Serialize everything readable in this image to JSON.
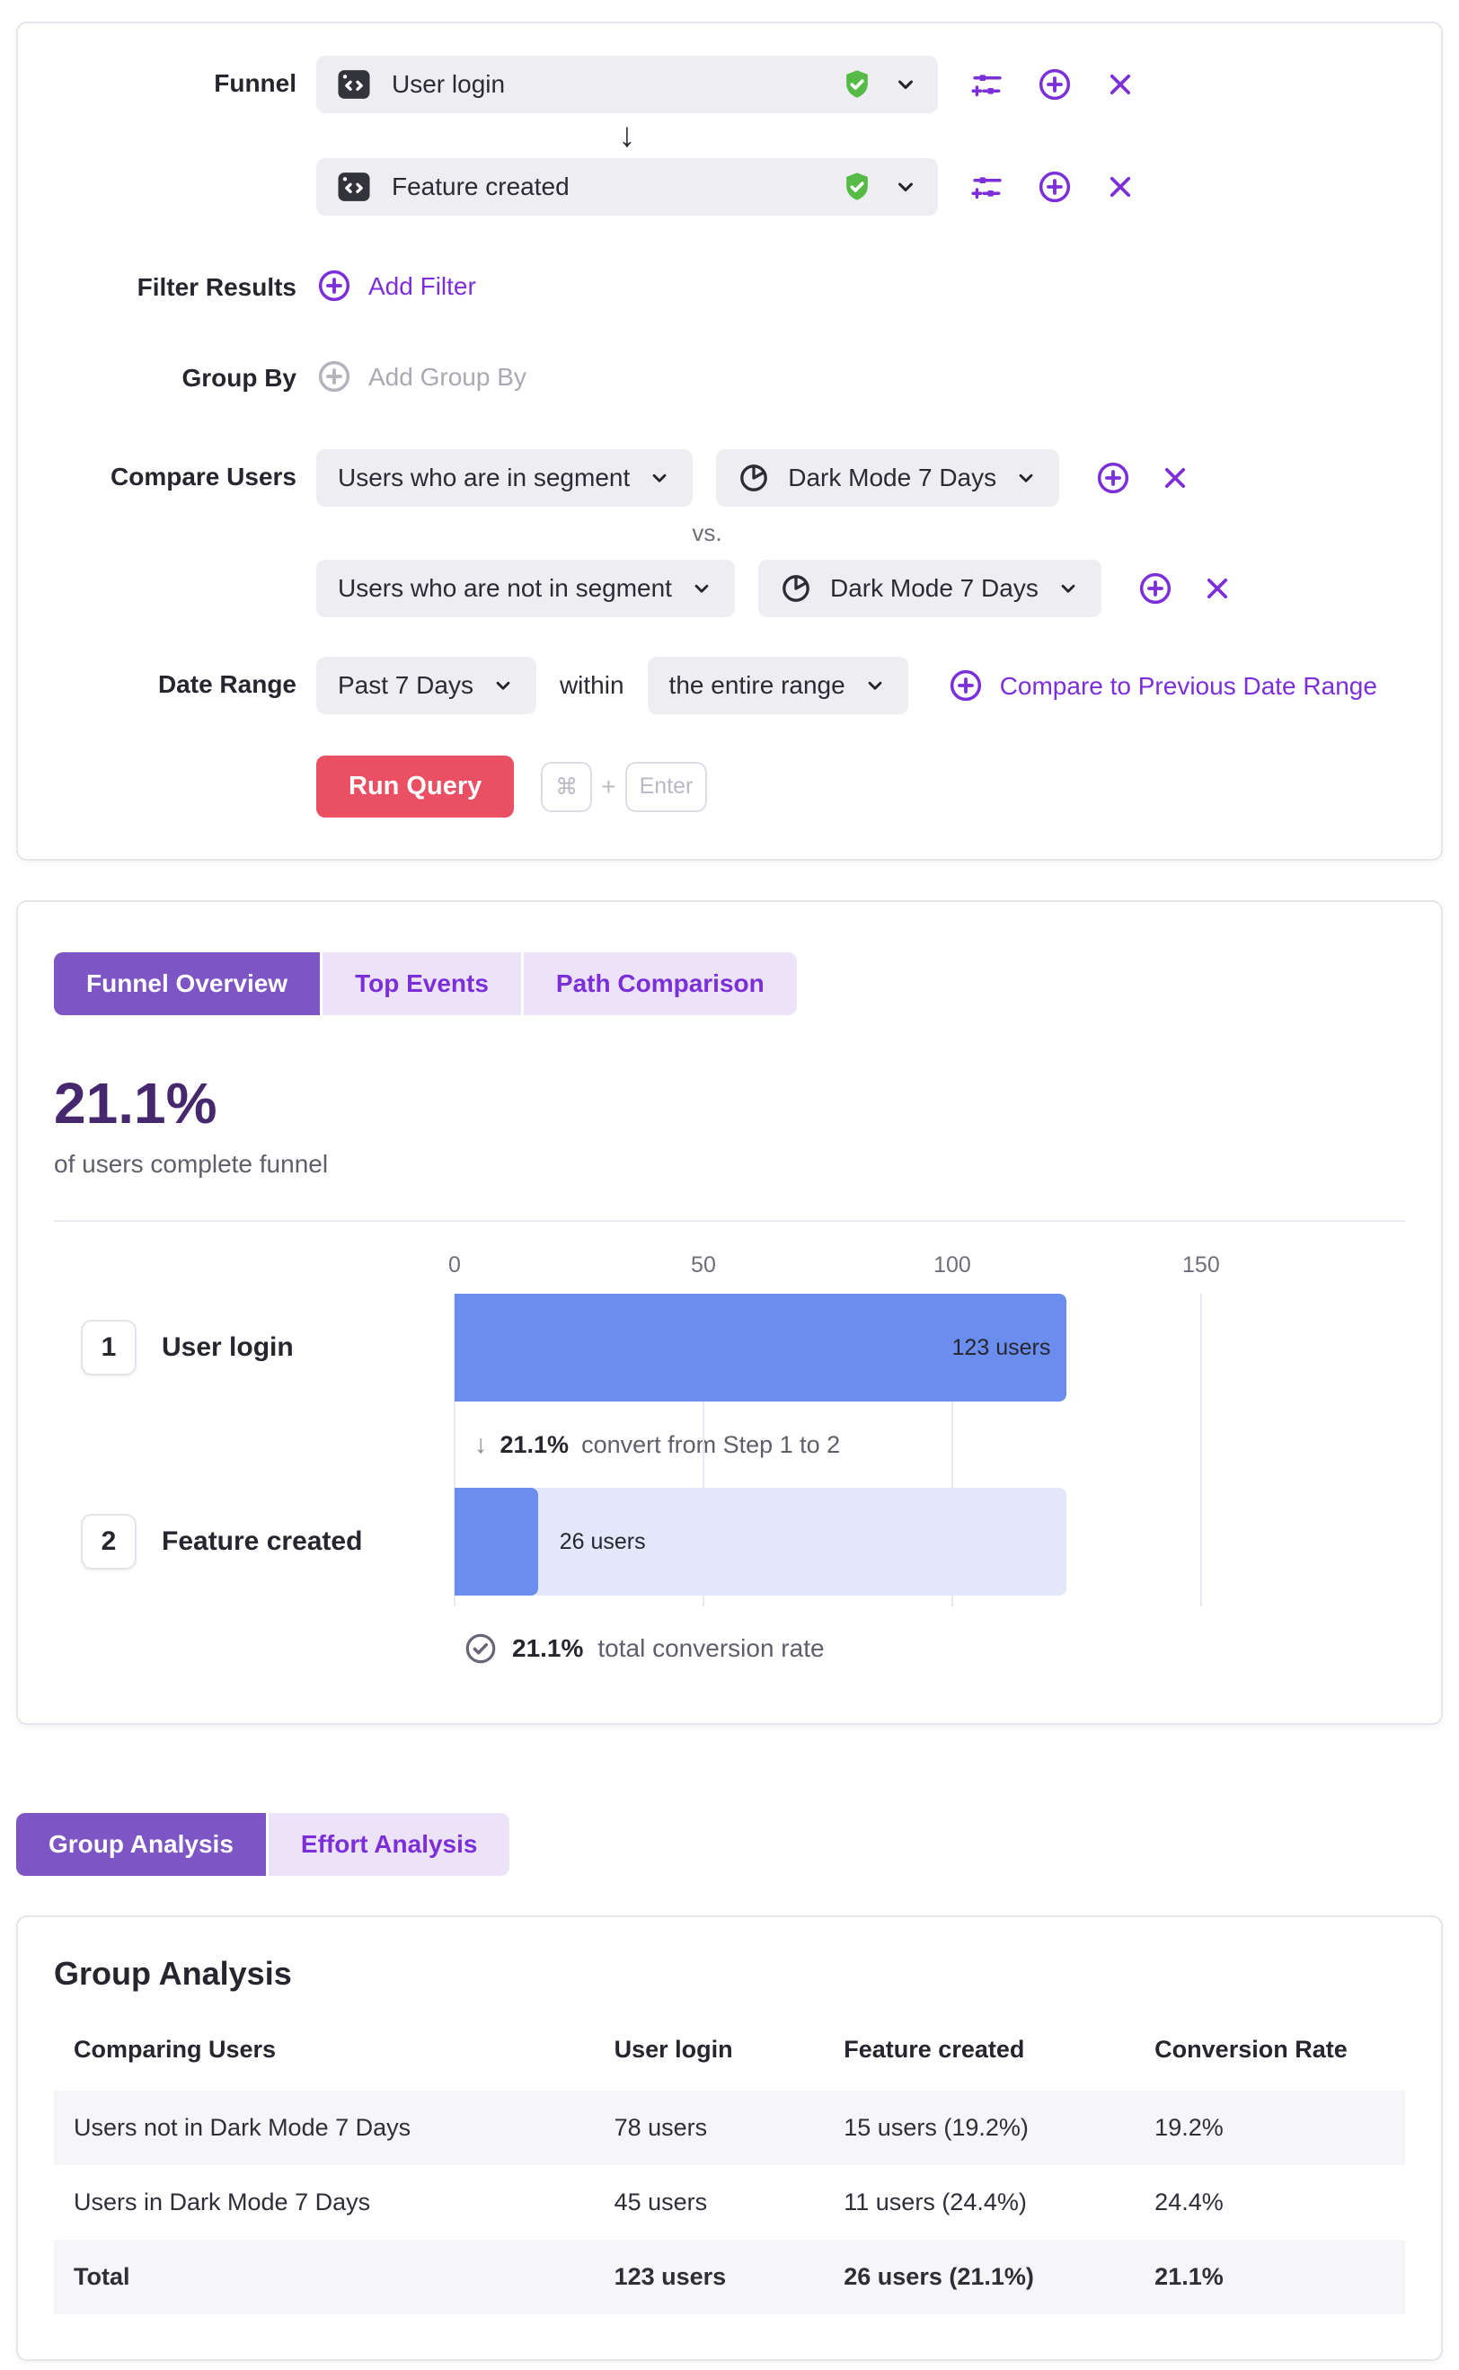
{
  "colors": {
    "accent_purple": "#7c2fd9",
    "tab_active_bg": "#7d55c4",
    "tab_inactive_bg": "#ece3f8",
    "headline_purple": "#46286f",
    "bar_blue": "#6b8ded",
    "bar_track_blue": "#e2e8fa",
    "run_button_red": "#ea4f63",
    "shield_green": "#56bb46",
    "input_bg": "#eeedf1",
    "event_icon_bg": "#33333b"
  },
  "query_builder": {
    "funnel_label": "Funnel",
    "steps": [
      {
        "event": "User login"
      },
      {
        "event": "Feature created"
      }
    ],
    "step_connector_glyph": "↓",
    "filter_results": {
      "label": "Filter Results",
      "add_label": "Add Filter"
    },
    "group_by": {
      "label": "Group By",
      "placeholder": "Add Group By"
    },
    "compare_users": {
      "label": "Compare Users",
      "vs_label": "vs.",
      "rows": [
        {
          "condition": "Users who are in segment",
          "segment": "Dark Mode 7 Days"
        },
        {
          "condition": "Users who are not in segment",
          "segment": "Dark Mode 7 Days"
        }
      ]
    },
    "date_range": {
      "label": "Date Range",
      "range_value": "Past 7 Days",
      "within_label": "within",
      "scope_value": "the entire range",
      "compare_link_label": "Compare to Previous Date Range"
    },
    "run": {
      "button_label": "Run Query",
      "shortcut": {
        "key1": "⌘",
        "joiner": "+",
        "key2": "Enter"
      }
    }
  },
  "results_tabs": [
    {
      "label": "Funnel Overview",
      "active": true
    },
    {
      "label": "Top Events",
      "active": false
    },
    {
      "label": "Path Comparison",
      "active": false
    }
  ],
  "overview": {
    "completion_pct": "21.1%",
    "caption": "of users complete funnel"
  },
  "chart_data": {
    "type": "bar",
    "orientation": "horizontal",
    "title": "Funnel Overview",
    "categories": [
      "User login",
      "Feature created"
    ],
    "step_numbers": [
      "1",
      "2"
    ],
    "values": [
      123,
      26
    ],
    "value_labels": [
      "123 users",
      "26 users"
    ],
    "x_ticks": [
      0,
      50,
      100,
      150
    ],
    "x_max": 191,
    "grid": true,
    "annotations": {
      "step_conversion": {
        "arrow": "↓",
        "pct": "21.1%",
        "text": "convert from Step 1 to 2"
      },
      "total_conversion": {
        "pct": "21.1%",
        "text": "total conversion rate"
      }
    },
    "bar_color": "#6b8ded",
    "bar_track_color": "#e2e8fa"
  },
  "analysis_tabs": [
    {
      "label": "Group Analysis",
      "active": true
    },
    {
      "label": "Effort Analysis",
      "active": false
    }
  ],
  "group_analysis": {
    "title": "Group Analysis",
    "columns": [
      "Comparing Users",
      "User login",
      "Feature created",
      "Conversion Rate"
    ],
    "rows": [
      {
        "cells": [
          "Users not in Dark Mode 7 Days",
          "78 users",
          "15 users (19.2%)",
          "19.2%"
        ]
      },
      {
        "cells": [
          "Users in Dark Mode 7 Days",
          "45 users",
          "11 users (24.4%)",
          "24.4%"
        ]
      },
      {
        "cells": [
          "Total",
          "123 users",
          "26 users (21.1%)",
          "21.1%"
        ]
      }
    ]
  }
}
